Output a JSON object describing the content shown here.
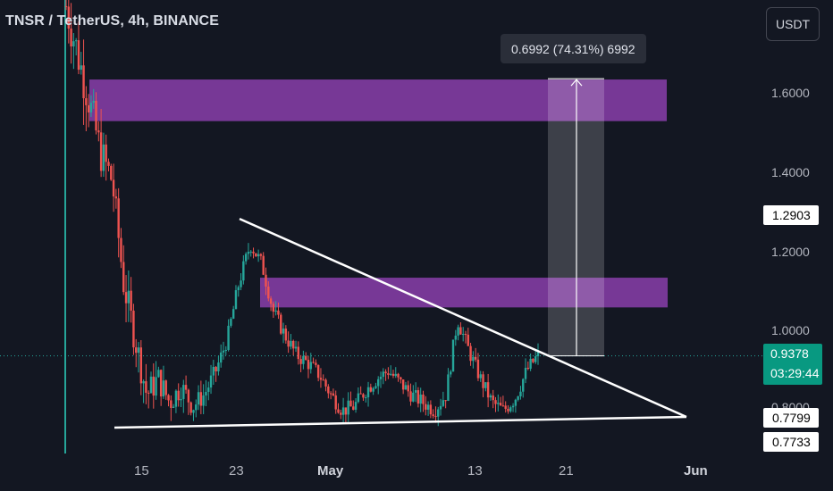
{
  "chart_title": "TNSR / TetherUS, 4h, BINANCE",
  "currency_button": "USDT",
  "price_ticks": [
    "1.6000",
    "1.4000",
    "1.2000",
    "1.0000",
    "0.8000"
  ],
  "time_ticks": [
    "15",
    "23",
    "May",
    "13",
    "21",
    "Jun"
  ],
  "price_labels": {
    "triangle_top": "1.2903",
    "support_high": "0.7799",
    "support_low": "0.7733"
  },
  "current_price": {
    "price": "0.9378",
    "countdown": "03:29:44"
  },
  "measure_tooltip": "0.6992 (74.31%) 6992",
  "colors": {
    "background": "#131722",
    "up": "#26a69a",
    "down": "#ef5350",
    "zone": "#8e3fb0",
    "line": "#ffffff",
    "current_label": "#089981"
  },
  "chart_data": {
    "type": "candlestick",
    "title": "TNSR / TetherUS, 4h, BINANCE",
    "x_ticks": [
      "15",
      "23",
      "May",
      "13",
      "21",
      "Jun"
    ],
    "y_ticks": [
      1.6,
      1.4,
      1.2,
      1.0,
      0.8
    ],
    "ylim": [
      0.7,
      1.8
    ],
    "last_price": 0.9378,
    "zones": [
      {
        "from": 1.53,
        "to": 1.635
      },
      {
        "from": 1.06,
        "to": 1.135
      }
    ],
    "trendlines": [
      {
        "from": [
          "23",
          1.2903
        ],
        "to": [
          "Jun",
          0.7799
        ]
      },
      {
        "from": [
          "15",
          0.7733
        ],
        "to": [
          "Jun",
          0.7799
        ]
      }
    ],
    "measure": {
      "from": 0.9378,
      "to": 1.637,
      "change": 0.6992,
      "percent": 74.31,
      "ticks": 6992
    },
    "series_close_path": [
      1.82,
      1.7,
      1.58,
      1.45,
      1.38,
      1.12,
      0.98,
      0.84,
      0.88,
      0.82,
      0.86,
      0.81,
      0.84,
      0.9,
      0.98,
      1.12,
      1.22,
      1.17,
      1.05,
      0.99,
      0.94,
      0.92,
      0.89,
      0.84,
      0.8,
      0.81,
      0.85,
      0.88,
      0.9,
      0.87,
      0.84,
      0.82,
      0.8,
      0.84,
      1.03,
      0.95,
      0.88,
      0.82,
      0.8,
      0.83,
      0.9,
      0.94
    ]
  }
}
